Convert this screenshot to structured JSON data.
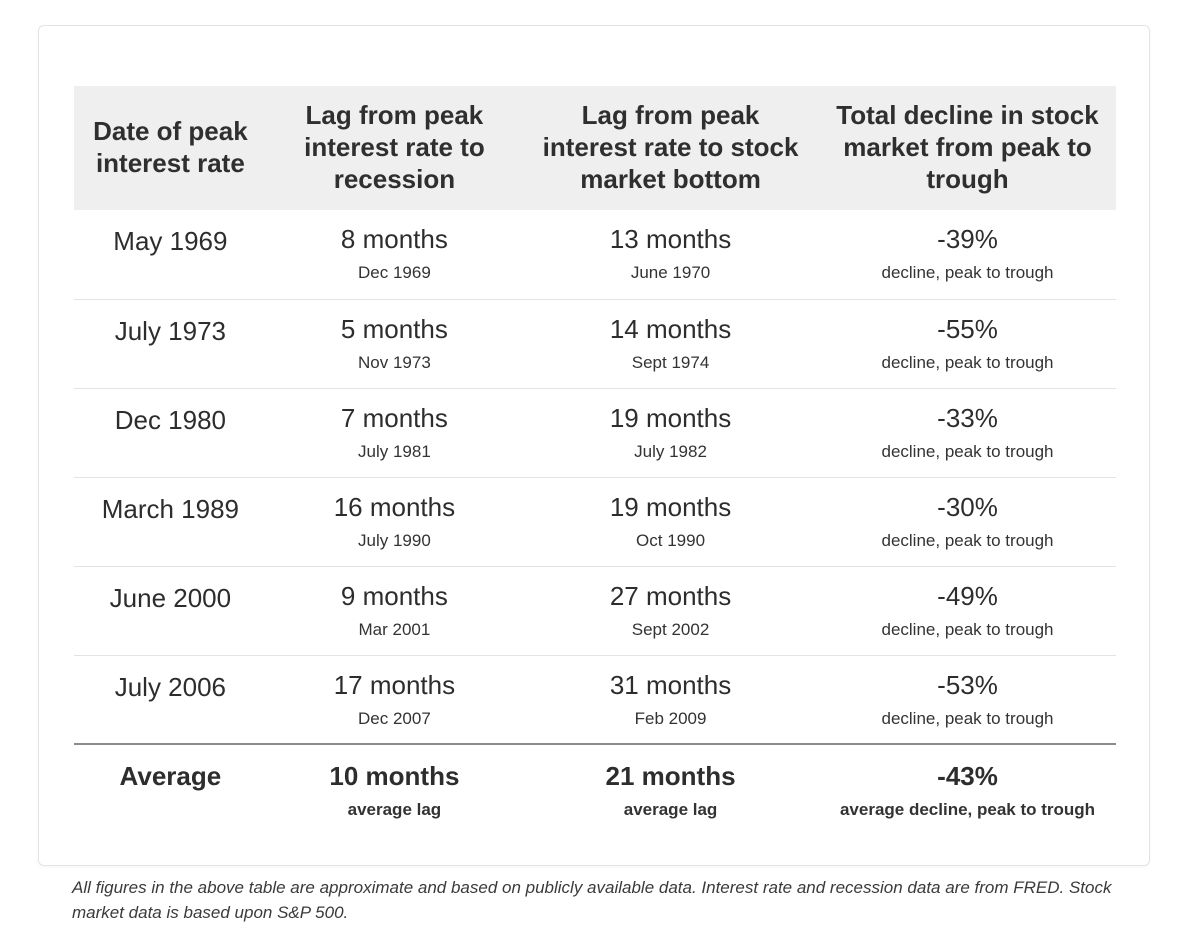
{
  "colors": {
    "header_bg": "#efefef",
    "text": "#2d2d2d",
    "row_divider": "#e3e3e3",
    "average_divider": "#8c8c8c",
    "card_border": "#e4e4e4"
  },
  "chart_data": {
    "type": "table",
    "columns": [
      "Date of peak interest rate",
      "Lag from peak interest rate to recession",
      "Lag from peak interest rate to stock market bottom",
      "Total decline in stock market from peak to trough"
    ],
    "rows": [
      {
        "date": "May 1969",
        "lag_recession": "8 months",
        "lag_recession_note": "Dec 1969",
        "lag_bottom": "13 months",
        "lag_bottom_note": "June 1970",
        "decline": "-39%",
        "decline_note": "decline, peak to trough"
      },
      {
        "date": "July 1973",
        "lag_recession": "5 months",
        "lag_recession_note": "Nov 1973",
        "lag_bottom": "14 months",
        "lag_bottom_note": "Sept 1974",
        "decline": "-55%",
        "decline_note": "decline, peak to trough"
      },
      {
        "date": "Dec 1980",
        "lag_recession": "7 months",
        "lag_recession_note": "July 1981",
        "lag_bottom": "19 months",
        "lag_bottom_note": "July 1982",
        "decline": "-33%",
        "decline_note": "decline, peak to trough"
      },
      {
        "date": "March 1989",
        "lag_recession": "16 months",
        "lag_recession_note": "July 1990",
        "lag_bottom": "19 months",
        "lag_bottom_note": "Oct 1990",
        "decline": "-30%",
        "decline_note": "decline, peak to trough"
      },
      {
        "date": "June 2000",
        "lag_recession": "9 months",
        "lag_recession_note": "Mar 2001",
        "lag_bottom": "27 months",
        "lag_bottom_note": "Sept 2002",
        "decline": "-49%",
        "decline_note": "decline, peak to trough"
      },
      {
        "date": "July 2006",
        "lag_recession": "17 months",
        "lag_recession_note": "Dec 2007",
        "lag_bottom": "31 months",
        "lag_bottom_note": "Feb 2009",
        "decline": "-53%",
        "decline_note": "decline, peak to trough"
      }
    ],
    "average": {
      "label": "Average",
      "lag_recession": "10 months",
      "lag_recession_note": "average lag",
      "lag_bottom": "21 months",
      "lag_bottom_note": "average lag",
      "decline": "-43%",
      "decline_note": "average decline, peak to trough"
    }
  },
  "footnote": "All figures in the above table are approximate and based on publicly available data. Interest rate and recession data are from FRED. Stock market data is based upon S&P 500."
}
